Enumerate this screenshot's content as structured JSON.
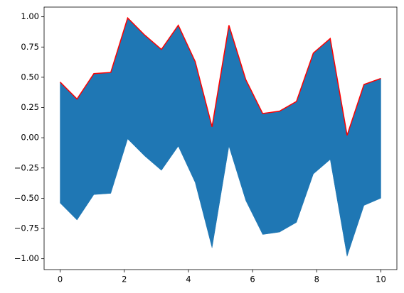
{
  "chart_data": {
    "type": "band",
    "x": [
      0,
      0.5263,
      1.0526,
      1.5789,
      2.1053,
      2.6316,
      3.1579,
      3.6842,
      4.2105,
      4.7368,
      5.2632,
      5.7895,
      6.3158,
      6.8421,
      7.3684,
      7.8947,
      8.4211,
      8.9474,
      9.4737,
      10
    ],
    "upper": [
      0.46,
      0.32,
      0.53,
      0.54,
      0.99,
      0.85,
      0.73,
      0.93,
      0.63,
      0.09,
      0.93,
      0.48,
      0.2,
      0.22,
      0.3,
      0.7,
      0.82,
      0.02,
      0.44,
      0.49
    ],
    "lower": [
      -0.54,
      -0.68,
      -0.47,
      -0.46,
      -0.01,
      -0.15,
      -0.27,
      -0.07,
      -0.37,
      -0.91,
      -0.07,
      -0.52,
      -0.8,
      -0.78,
      -0.7,
      -0.3,
      -0.18,
      -0.98,
      -0.56,
      -0.5
    ],
    "fill_color": "#1f77b4",
    "line_color": "#ff0000",
    "xlim": [
      -0.5,
      10.5
    ],
    "ylim": [
      -1.09,
      1.08
    ],
    "xticks": [
      0,
      2,
      4,
      6,
      8,
      10
    ],
    "yticks": [
      {
        "value": 1,
        "label": "1.00"
      },
      {
        "value": 0.75,
        "label": "0.75"
      },
      {
        "value": 0.5,
        "label": "0.50"
      },
      {
        "value": 0.25,
        "label": "0.25"
      },
      {
        "value": 0,
        "label": "0.00"
      },
      {
        "value": -0.25,
        "label": "−0.25"
      },
      {
        "value": -0.5,
        "label": "−0.50"
      },
      {
        "value": -0.75,
        "label": "−0.75"
      },
      {
        "value": -1,
        "label": "−1.00"
      }
    ]
  }
}
